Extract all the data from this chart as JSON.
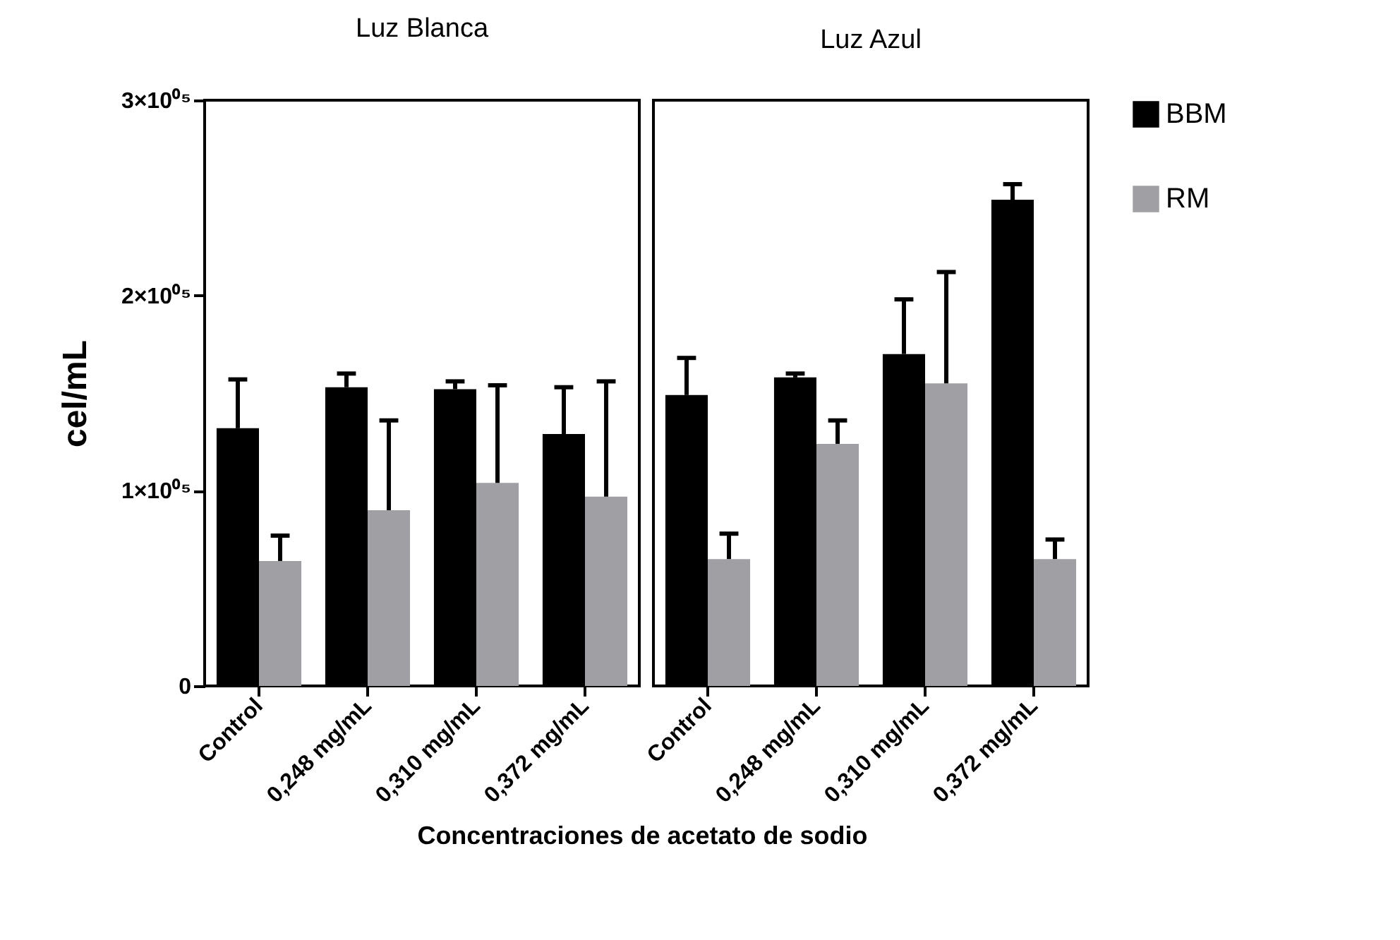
{
  "chart_data": [
    {
      "type": "bar",
      "title": "Luz Blanca",
      "ylabel": "cel/mL",
      "xlabel": "Concentraciones de acetato de sodio",
      "categories": [
        "Control",
        "0,248 mg/mL",
        "0,310 mg/mL",
        "0,372 mg/mL"
      ],
      "series": [
        {
          "name": "BBM",
          "color": "#000000",
          "values": [
            132000,
            153000,
            152000,
            129000
          ],
          "errors": [
            [
              132000,
              157000
            ],
            [
              153000,
              160000
            ],
            [
              152000,
              156000
            ],
            [
              129000,
              153000
            ]
          ]
        },
        {
          "name": "RM",
          "color": "#a0a0a4",
          "values": [
            64000,
            90000,
            104000,
            97000
          ],
          "errors": [
            [
              64000,
              77000
            ],
            [
              90000,
              136000
            ],
            [
              104000,
              154000
            ],
            [
              97000,
              156000
            ]
          ]
        }
      ],
      "ylim": [
        0,
        300000
      ],
      "yticks": [
        0,
        {
          "value": 100000,
          "label": "1×10⁰⁵"
        },
        {
          "value": 200000,
          "label": "2×10⁰⁵"
        },
        {
          "value": 300000,
          "label": "3×10⁰⁵"
        }
      ],
      "grid": false,
      "legend": "right"
    },
    {
      "type": "bar",
      "title": "Luz Azul",
      "categories": [
        "Control",
        "0,248 mg/mL",
        "0,310 mg/mL",
        "0,372 mg/mL"
      ],
      "series": [
        {
          "name": "BBM",
          "color": "#000000",
          "values": [
            149000,
            158000,
            170000,
            249000
          ],
          "errors": [
            [
              149000,
              168000
            ],
            [
              158000,
              160000
            ],
            [
              170000,
              198000
            ],
            [
              249000,
              257000
            ]
          ]
        },
        {
          "name": "RM",
          "color": "#a0a0a4",
          "values": [
            65000,
            124000,
            155000,
            65000
          ],
          "errors": [
            [
              65000,
              78000
            ],
            [
              124000,
              136000
            ],
            [
              155000,
              212000
            ],
            [
              65000,
              75000
            ]
          ]
        }
      ],
      "ylim": [
        0,
        300000
      ],
      "tick_labels": "x",
      "grid": false,
      "legend": "right"
    }
  ]
}
